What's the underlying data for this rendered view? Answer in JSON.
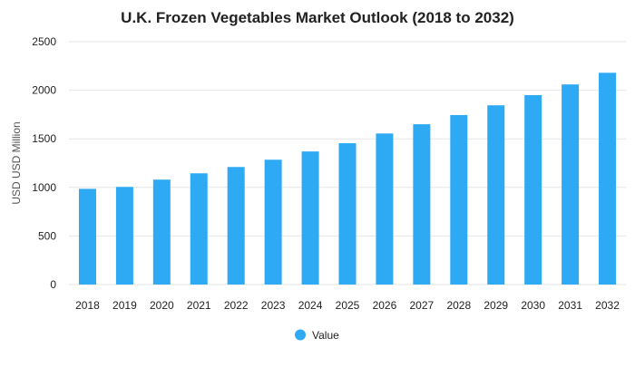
{
  "chart_data": {
    "type": "bar",
    "title": "U.K. Frozen Vegetables Market Outlook (2018 to 2032)",
    "xlabel": "",
    "ylabel": "USD USD Million",
    "ylim": [
      0,
      2500
    ],
    "yticks": [
      0,
      500,
      1000,
      1500,
      2000,
      2500
    ],
    "categories": [
      "2018",
      "2019",
      "2020",
      "2021",
      "2022",
      "2023",
      "2024",
      "2025",
      "2026",
      "2027",
      "2028",
      "2029",
      "2030",
      "2031",
      "2032"
    ],
    "series": [
      {
        "name": "Value",
        "color": "#2eaaf5",
        "values": [
          985,
          1005,
          1080,
          1145,
          1210,
          1285,
          1370,
          1455,
          1555,
          1650,
          1745,
          1845,
          1950,
          2060,
          2180
        ]
      }
    ],
    "grid": true,
    "legend_position": "bottom"
  }
}
